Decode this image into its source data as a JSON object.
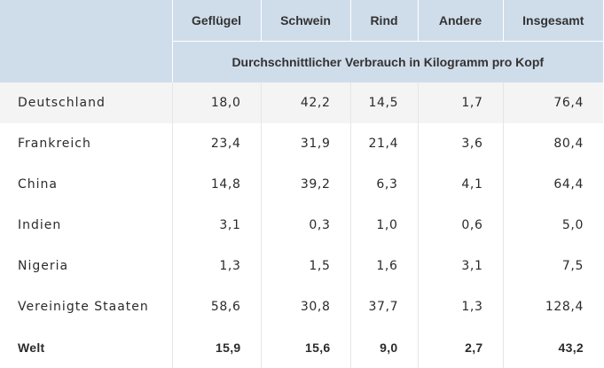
{
  "table": {
    "columns": [
      "Geflügel",
      "Schwein",
      "Rind",
      "Andere",
      "Insgesamt"
    ],
    "unit_caption": "Durchschnittlicher Verbrauch in Kilogramm pro Kopf",
    "rows": [
      {
        "country": "Deutschland",
        "values": [
          "18,0",
          "42,2",
          "14,5",
          "1,7",
          "76,4"
        ]
      },
      {
        "country": "Frankreich",
        "values": [
          "23,4",
          "31,9",
          "21,4",
          "3,6",
          "80,4"
        ]
      },
      {
        "country": "China",
        "values": [
          "14,8",
          "39,2",
          "6,3",
          "4,1",
          "64,4"
        ]
      },
      {
        "country": "Indien",
        "values": [
          "3,1",
          "0,3",
          "1,0",
          "0,6",
          "5,0"
        ]
      },
      {
        "country": "Nigeria",
        "values": [
          "1,3",
          "1,5",
          "1,6",
          "3,1",
          "7,5"
        ]
      },
      {
        "country": "Vereinigte Staaten",
        "values": [
          "58,6",
          "30,8",
          "37,7",
          "1,3",
          "128,4"
        ]
      }
    ],
    "total": {
      "country": "Welt",
      "values": [
        "15,9",
        "15,6",
        "9,0",
        "2,7",
        "43,2"
      ]
    }
  },
  "colors": {
    "header_bg": "#cfdcea",
    "zebra_bg": "#f4f4f4",
    "text": "#2b2b2b"
  }
}
